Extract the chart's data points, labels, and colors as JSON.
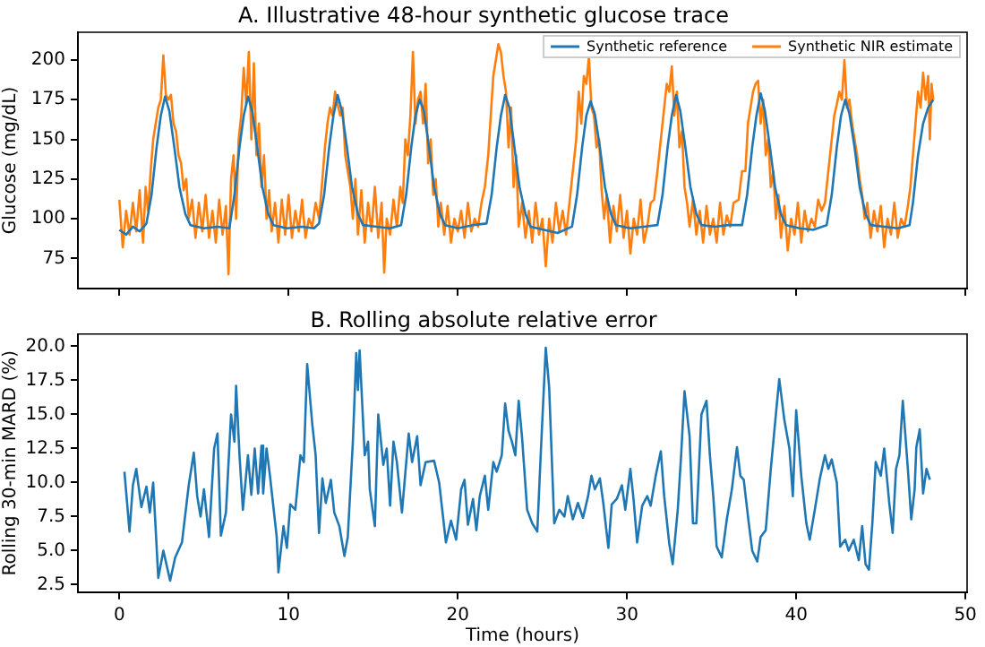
{
  "chart_data": [
    {
      "type": "line",
      "title": "A. Illustrative 48-hour synthetic glucose trace",
      "ylabel": "Glucose (mg/dL)",
      "xlim": [
        -2.45,
        50.1
      ],
      "xticks": [
        0,
        10,
        20,
        30,
        40,
        50
      ],
      "ylim": [
        56,
        217.5
      ],
      "yticks": [
        75,
        100,
        125,
        150,
        175,
        200
      ],
      "tick_labels": "y",
      "grid": false,
      "legend": "top right",
      "marker": "none",
      "series": [
        {
          "name": "Synthetic reference",
          "color": "#1f77b4",
          "x": [
            0,
            0.4,
            0.8,
            1.2,
            1.6,
            1.9,
            2.2,
            2.45,
            2.7,
            2.95,
            3.25,
            3.55,
            3.9,
            4.2,
            5.0,
            5.8,
            6.5,
            6.8,
            7.1,
            7.35,
            7.6,
            7.85,
            8.15,
            8.45,
            8.8,
            9.1,
            9.9,
            10.8,
            11.5,
            11.8,
            12.1,
            12.4,
            12.65,
            12.9,
            13.15,
            13.45,
            13.75,
            14.1,
            14.4,
            15.2,
            16.0,
            16.65,
            16.95,
            17.25,
            17.5,
            17.75,
            18.0,
            18.3,
            18.6,
            18.95,
            19.25,
            20.0,
            20.9,
            21.7,
            22.0,
            22.3,
            22.55,
            22.8,
            23.05,
            23.35,
            23.65,
            24.0,
            24.3,
            25.1,
            25.9,
            26.75,
            27.05,
            27.35,
            27.6,
            27.85,
            28.1,
            28.4,
            28.7,
            29.05,
            29.35,
            30.2,
            31.0,
            31.8,
            32.1,
            32.4,
            32.65,
            32.9,
            33.15,
            33.45,
            33.75,
            34.1,
            34.4,
            35.2,
            36.0,
            36.8,
            37.1,
            37.4,
            37.65,
            37.9,
            38.15,
            38.45,
            38.75,
            39.1,
            39.4,
            40.2,
            41.0,
            41.8,
            42.1,
            42.4,
            42.65,
            42.9,
            43.15,
            43.45,
            43.75,
            44.1,
            44.4,
            45.2,
            46.0,
            46.7,
            46.9,
            47.2,
            47.5,
            47.8,
            48.1
          ],
          "values": [
            93,
            90,
            95,
            92,
            97,
            115,
            145,
            165,
            177,
            168,
            145,
            120,
            103,
            96,
            94,
            95,
            94,
            115,
            145,
            165,
            177,
            168,
            145,
            120,
            103,
            96,
            94,
            95,
            94,
            97,
            115,
            145,
            165,
            178,
            168,
            145,
            120,
            103,
            96,
            95,
            94,
            96,
            115,
            145,
            165,
            175,
            168,
            145,
            120,
            103,
            96,
            94,
            96,
            97,
            115,
            145,
            165,
            178,
            170,
            145,
            120,
            103,
            95,
            93,
            91,
            95,
            115,
            145,
            165,
            174,
            166,
            145,
            120,
            103,
            96,
            94,
            95,
            96,
            115,
            145,
            165,
            178,
            168,
            145,
            120,
            103,
            96,
            95,
            96,
            96,
            115,
            145,
            165,
            179,
            168,
            145,
            120,
            103,
            96,
            94,
            93,
            96,
            115,
            145,
            165,
            175,
            166,
            145,
            120,
            103,
            96,
            95,
            94,
            96,
            110,
            140,
            160,
            170,
            175
          ]
        },
        {
          "name": "Synthetic NIR estimate",
          "color": "#ff7f0e",
          "x": [
            0,
            0.2,
            0.4,
            0.6,
            0.8,
            1.0,
            1.2,
            1.4,
            1.55,
            1.7,
            1.85,
            2.0,
            2.15,
            2.3,
            2.45,
            2.6,
            2.75,
            2.9,
            3.05,
            3.2,
            3.35,
            3.5,
            3.65,
            3.8,
            3.95,
            4.1,
            4.3,
            4.5,
            4.7,
            4.9,
            5.1,
            5.3,
            5.5,
            5.7,
            5.9,
            6.1,
            6.3,
            6.45,
            6.6,
            6.75,
            6.9,
            7.05,
            7.2,
            7.35,
            7.5,
            7.65,
            7.8,
            7.95,
            8.1,
            8.25,
            8.4,
            8.55,
            8.7,
            8.85,
            9.0,
            9.2,
            9.4,
            9.6,
            9.8,
            10.0,
            10.2,
            10.4,
            10.6,
            10.8,
            11.0,
            11.2,
            11.4,
            11.6,
            11.8,
            12.0,
            12.15,
            12.3,
            12.45,
            12.6,
            12.75,
            12.9,
            13.05,
            13.2,
            13.35,
            13.5,
            13.65,
            13.8,
            13.95,
            14.1,
            14.3,
            14.5,
            14.7,
            14.9,
            15.1,
            15.3,
            15.5,
            15.65,
            15.8,
            16.0,
            16.2,
            16.4,
            16.6,
            16.75,
            16.9,
            17.05,
            17.2,
            17.35,
            17.5,
            17.65,
            17.8,
            17.95,
            18.1,
            18.25,
            18.4,
            18.55,
            18.7,
            18.85,
            19.0,
            19.2,
            19.4,
            19.6,
            19.8,
            20.0,
            20.2,
            20.4,
            20.6,
            20.8,
            21.0,
            21.2,
            21.4,
            21.6,
            21.8,
            21.95,
            22.1,
            22.25,
            22.4,
            22.55,
            22.7,
            22.85,
            23.0,
            23.15,
            23.3,
            23.45,
            23.6,
            23.8,
            24.0,
            24.2,
            24.4,
            24.6,
            24.8,
            25.0,
            25.2,
            25.4,
            25.6,
            25.8,
            26.0,
            26.2,
            26.4,
            26.6,
            26.8,
            27.0,
            27.15,
            27.3,
            27.45,
            27.6,
            27.75,
            27.9,
            28.05,
            28.2,
            28.35,
            28.5,
            28.65,
            28.8,
            29.0,
            29.2,
            29.4,
            29.6,
            29.8,
            30.0,
            30.2,
            30.4,
            30.6,
            30.8,
            31.0,
            31.2,
            31.4,
            31.6,
            31.8,
            32.0,
            32.2,
            32.35,
            32.5,
            32.65,
            32.8,
            32.95,
            33.1,
            33.25,
            33.4,
            33.55,
            33.7,
            33.9,
            34.1,
            34.3,
            34.5,
            34.7,
            34.9,
            35.1,
            35.3,
            35.5,
            35.7,
            35.9,
            36.1,
            36.3,
            36.6,
            36.8,
            37.0,
            37.15,
            37.3,
            37.45,
            37.6,
            37.75,
            37.9,
            38.05,
            38.2,
            38.35,
            38.5,
            38.65,
            38.8,
            38.95,
            39.1,
            39.3,
            39.5,
            39.7,
            39.9,
            40.1,
            40.3,
            40.5,
            40.7,
            40.9,
            41.1,
            41.3,
            41.5,
            41.7,
            41.9,
            42.1,
            42.25,
            42.4,
            42.55,
            42.7,
            42.85,
            43.0,
            43.15,
            43.3,
            43.45,
            43.6,
            43.75,
            43.9,
            44.05,
            44.2,
            44.4,
            44.6,
            44.8,
            45.0,
            45.2,
            45.4,
            45.6,
            45.8,
            46.0,
            46.2,
            46.4,
            46.6,
            46.75,
            46.9,
            47.05,
            47.2,
            47.35,
            47.5,
            47.65,
            47.8,
            47.9,
            48.0,
            48.1
          ],
          "values": [
            112,
            82,
            105,
            90,
            110,
            92,
            118,
            85,
            120,
            105,
            130,
            150,
            160,
            170,
            175,
            203,
            178,
            175,
            178,
            160,
            155,
            140,
            135,
            118,
            125,
            100,
            112,
            88,
            110,
            92,
            115,
            88,
            105,
            85,
            112,
            90,
            108,
            65,
            125,
            140,
            100,
            150,
            165,
            195,
            172,
            205,
            150,
            198,
            140,
            160,
            120,
            140,
            100,
            118,
            92,
            110,
            85,
            112,
            90,
            115,
            88,
            105,
            92,
            112,
            88,
            100,
            95,
            110,
            100,
            125,
            145,
            160,
            170,
            165,
            180,
            172,
            165,
            170,
            140,
            130,
            120,
            100,
            125,
            90,
            118,
            85,
            110,
            92,
            120,
            88,
            110,
            66,
            100,
            90,
            112,
            95,
            120,
            110,
            150,
            140,
            165,
            205,
            160,
            175,
            180,
            160,
            185,
            135,
            150,
            115,
            125,
            95,
            110,
            90,
            108,
            85,
            100,
            92,
            105,
            88,
            110,
            92,
            100,
            95,
            110,
            120,
            140,
            165,
            190,
            200,
            210,
            205,
            190,
            180,
            145,
            170,
            120,
            140,
            95,
            110,
            88,
            105,
            85,
            110,
            90,
            100,
            70,
            100,
            85,
            110,
            92,
            105,
            90,
            110,
            130,
            150,
            180,
            160,
            190,
            185,
            202,
            170,
            165,
            145,
            150,
            118,
            100,
            115,
            85,
            108,
            92,
            115,
            88,
            105,
            78,
            100,
            90,
            112,
            85,
            95,
            110,
            112,
            130,
            150,
            170,
            185,
            180,
            196,
            165,
            180,
            145,
            155,
            120,
            110,
            95,
            112,
            90,
            105,
            85,
            108,
            90,
            100,
            85,
            110,
            90,
            102,
            95,
            110,
            112,
            130,
            130,
            160,
            170,
            180,
            185,
            187,
            160,
            175,
            140,
            150,
            120,
            130,
            100,
            115,
            88,
            108,
            80,
            100,
            90,
            110,
            85,
            105,
            92,
            100,
            95,
            112,
            105,
            110,
            130,
            150,
            165,
            172,
            180,
            175,
            200,
            170,
            175,
            160,
            150,
            140,
            125,
            115,
            100,
            110,
            88,
            105,
            92,
            108,
            82,
            100,
            90,
            110,
            88,
            100,
            95,
            108,
            120,
            140,
            160,
            180,
            170,
            192,
            175,
            190,
            150,
            185,
            175
          ]
        }
      ]
    },
    {
      "type": "line",
      "title": "B. Rolling absolute relative error",
      "xlabel": "Time (hours)",
      "ylabel": "Rolling 30-min MARD (%)",
      "xlim": [
        -2.45,
        50.1
      ],
      "xticks": [
        0,
        10,
        20,
        30,
        40,
        50
      ],
      "ylim": [
        1.95,
        20.9
      ],
      "yticks": [
        2.5,
        {
          "value": 5,
          "label": "5.0"
        },
        7.5,
        {
          "value": 10,
          "label": "10.0"
        },
        12.5,
        {
          "value": 15,
          "label": "15.0"
        },
        17.5,
        {
          "value": 20,
          "label": "20.0"
        }
      ],
      "grid": false,
      "legend": false,
      "marker": "none",
      "series": [
        {
          "color": "#1f77b4",
          "x": [
            0.3,
            0.6,
            0.8,
            1.0,
            1.3,
            1.6,
            1.8,
            2.0,
            2.3,
            2.6,
            3.0,
            3.3,
            3.7,
            4.1,
            4.4,
            4.6,
            4.8,
            5.0,
            5.3,
            5.6,
            5.8,
            6.0,
            6.3,
            6.6,
            6.8,
            6.9,
            7.1,
            7.3,
            7.6,
            7.8,
            8.0,
            8.2,
            8.4,
            8.5,
            8.7,
            8.9,
            9.3,
            9.4,
            9.7,
            9.9,
            10.1,
            10.4,
            10.7,
            10.9,
            11.1,
            11.4,
            11.6,
            11.8,
            12.0,
            12.2,
            12.5,
            12.7,
            13.0,
            13.3,
            13.5,
            13.8,
            14.0,
            14.1,
            14.2,
            14.5,
            14.7,
            14.8,
            15.1,
            15.3,
            15.6,
            15.8,
            16.0,
            16.2,
            16.4,
            16.7,
            16.9,
            17.1,
            17.3,
            17.6,
            17.8,
            18.1,
            18.6,
            18.9,
            19.3,
            19.6,
            19.9,
            20.2,
            20.4,
            20.6,
            20.9,
            21.1,
            21.3,
            21.6,
            21.8,
            22.1,
            22.3,
            22.6,
            22.8,
            23.0,
            23.2,
            23.4,
            23.6,
            23.8,
            24.1,
            24.4,
            24.7,
            24.9,
            25.2,
            25.4,
            25.7,
            26.0,
            26.3,
            26.5,
            26.8,
            27.1,
            27.4,
            27.7,
            27.9,
            28.1,
            28.4,
            28.6,
            28.9,
            29.1,
            29.4,
            29.7,
            29.9,
            30.2,
            30.4,
            30.6,
            30.9,
            31.2,
            31.4,
            31.7,
            32.0,
            32.2,
            32.5,
            32.7,
            33.0,
            33.2,
            33.4,
            33.7,
            33.9,
            34.1,
            34.4,
            34.7,
            34.9,
            35.1,
            35.3,
            35.6,
            35.9,
            36.2,
            36.5,
            36.7,
            36.9,
            37.2,
            37.4,
            37.7,
            37.9,
            38.2,
            38.5,
            38.8,
            39.0,
            39.3,
            39.6,
            39.8,
            40.0,
            40.3,
            40.6,
            40.8,
            41.1,
            41.4,
            41.7,
            41.9,
            42.1,
            42.4,
            42.6,
            42.9,
            43.1,
            43.4,
            43.7,
            43.9,
            44.1,
            44.3,
            44.5,
            44.7,
            45.0,
            45.2,
            45.5,
            45.7,
            45.9,
            46.1,
            46.3,
            46.6,
            46.8,
            47.0,
            47.1,
            47.3,
            47.5,
            47.7,
            47.9
          ],
          "values": [
            10.8,
            6.4,
            9.8,
            11.0,
            8.2,
            9.7,
            7.8,
            10.0,
            3.0,
            5.0,
            2.8,
            4.5,
            5.6,
            9.8,
            12.2,
            9.0,
            7.5,
            9.5,
            6.0,
            12.5,
            13.6,
            6.1,
            7.8,
            15.0,
            13.0,
            17.1,
            12.0,
            8.0,
            12.0,
            9.1,
            12.5,
            9.2,
            12.7,
            9.2,
            12.5,
            10.5,
            6.0,
            3.4,
            6.8,
            5.2,
            8.4,
            8.0,
            12.0,
            11.5,
            18.7,
            14.3,
            12.0,
            6.3,
            10.3,
            8.5,
            10.2,
            7.8,
            6.8,
            4.6,
            6.0,
            13.0,
            19.5,
            16.8,
            19.7,
            12.0,
            13.0,
            9.5,
            6.8,
            15.0,
            11.3,
            12.5,
            8.3,
            13.0,
            11.5,
            7.8,
            10.7,
            13.6,
            11.5,
            13.4,
            9.8,
            11.5,
            11.6,
            10.0,
            5.6,
            7.2,
            5.8,
            9.5,
            10.2,
            6.9,
            8.8,
            6.5,
            9.0,
            10.5,
            8.0,
            11.5,
            10.8,
            12.0,
            15.8,
            13.8,
            13.0,
            12.0,
            16.0,
            13.3,
            8.0,
            7.0,
            6.4,
            12.0,
            19.9,
            17.0,
            7.0,
            8.0,
            7.5,
            9.0,
            7.3,
            8.5,
            7.4,
            9.0,
            10.5,
            9.5,
            10.3,
            8.5,
            5.2,
            8.4,
            8.8,
            9.8,
            8.0,
            11.0,
            8.6,
            5.6,
            8.3,
            9.0,
            8.3,
            10.5,
            12.3,
            9.0,
            5.5,
            4.0,
            8.0,
            12.0,
            16.7,
            13.4,
            7.0,
            7.0,
            15.0,
            16.0,
            12.0,
            9.0,
            5.3,
            4.5,
            7.3,
            9.5,
            12.6,
            10.5,
            10.2,
            7.0,
            5.0,
            4.2,
            6.0,
            6.5,
            11.0,
            15.0,
            17.6,
            14.6,
            12.5,
            9.0,
            15.3,
            10.5,
            7.0,
            5.8,
            8.0,
            10.3,
            12.0,
            11.0,
            11.7,
            10.0,
            5.3,
            5.8,
            5.0,
            5.8,
            4.3,
            6.8,
            4.0,
            3.6,
            7.0,
            11.5,
            10.5,
            12.5,
            8.5,
            6.3,
            11.0,
            12.0,
            16.0,
            11.0,
            7.3,
            9.5,
            12.6,
            13.9,
            9.2,
            11.0,
            10.2
          ]
        }
      ]
    }
  ]
}
